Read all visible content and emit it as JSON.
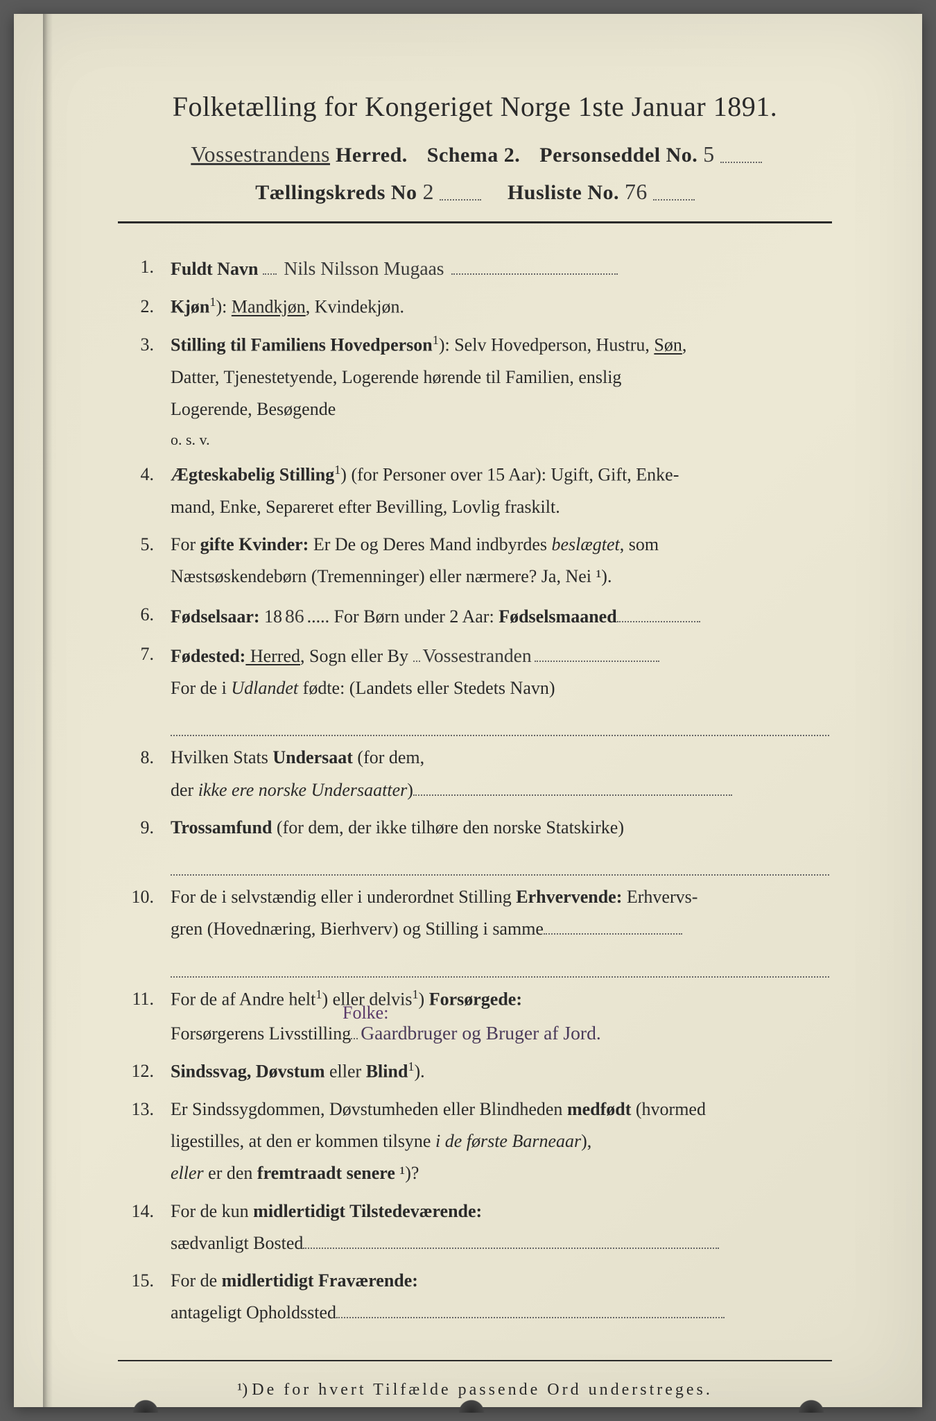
{
  "header": {
    "main_title": "Folketælling for Kongeriget Norge 1ste Januar 1891.",
    "herred_handwritten": "Vossestrandens",
    "herred_label": "Herred.",
    "schema_label": "Schema 2.",
    "person_label": "Personseddel No.",
    "person_no": "5",
    "kreds_label": "Tællingskreds No",
    "kreds_no": "2",
    "husliste_label": "Husliste No.",
    "husliste_no": "76"
  },
  "items": [
    {
      "num": "1.",
      "label_bold": "Fuldt Navn",
      "handwritten": "Nils Nilsson Mugaas"
    },
    {
      "num": "2.",
      "label_bold": "Kjøn",
      "sup": "1",
      "text_after": "): ",
      "options_underlined": "Mandkjøn",
      "options_rest": ", Kvindekjøn."
    },
    {
      "num": "3.",
      "label_bold": "Stilling til Familiens Hovedperson",
      "sup": "1",
      "text_after": "): Selv Hovedperson, Hustru, ",
      "underlined_opt": "Søn",
      "text_tail": ",",
      "continuations": [
        "Datter, Tjenestetyende, Logerende hørende til Familien, enslig",
        "Logerende, Besøgende",
        "o. s. v."
      ]
    },
    {
      "num": "4.",
      "label_bold": "Ægteskabelig Stilling",
      "sup": "1",
      "text_after": ") (for Personer over 15 Aar): Ugift, Gift, Enke-",
      "continuations": [
        "mand, Enke, Separeret efter Bevilling, Lovlig fraskilt."
      ]
    },
    {
      "num": "5.",
      "pre_text": "For ",
      "label_bold": "gifte Kvinder:",
      "text_after": " Er De og Deres Mand indbyrdes ",
      "ital": "beslægtet",
      "text_tail": ", som",
      "continuations": [
        "Næstsøskendebørn (Tremenninger) eller nærmere?  Ja, Nei ¹)."
      ]
    },
    {
      "num": "6.",
      "label_bold": "Fødselsaar:",
      "year_prefix": " 18",
      "year_hw": "86",
      "text_after": ".....   For Børn under 2 Aar: ",
      "label_bold2": "Fødselsmaaned",
      "trail_dots": true
    },
    {
      "num": "7.",
      "label_bold": "Fødested:",
      "underlined_opt": " Herred",
      "text_after": ", Sogn eller By ",
      "handwritten": "Vossestranden",
      "continuations": [
        "For de i <i>Udlandet</i> fødte: (Landets eller Stedets Navn)"
      ],
      "dotted_line_after": true
    },
    {
      "num": "8.",
      "pre_text": "Hvilken Stats ",
      "label_bold": "Undersaat",
      "text_after": " (for dem,",
      "continuations": [
        "der <i>ikke ere norske Undersaatter</i>)"
      ],
      "cont_trail_dots": true
    },
    {
      "num": "9.",
      "label_bold": "Trossamfund",
      "text_after": "  (for  dem,  der  ikke  tilhøre  den  norske  Statskirke)",
      "dotted_line_after": true
    },
    {
      "num": "10.",
      "pre_text": "For de i selvstændig eller i underordnet Stilling ",
      "label_bold": "Erhvervende:",
      "text_after": " Erhvervs-",
      "continuations": [
        "gren (Hovednæring, Bierhverv) og Stilling i samme"
      ],
      "cont_trail_dots": true,
      "dotted_line_after": true
    },
    {
      "num": "11.",
      "pre_text": "For de af Andre helt",
      "sup": "1",
      "mid_text": ") eller delvis",
      "sup2": "1",
      "text_after": ") ",
      "label_bold": "Forsørgede:",
      "stamp_text": "Folke:",
      "continuations_label": "Forsørgerens Livsstilling",
      "cont_handwritten": "Gaardbruger og Bruger af Jord."
    },
    {
      "num": "12.",
      "label_bold": "Sindssvag, Døvstum",
      "text_after": " eller ",
      "label_bold2": "Blind",
      "sup": "1",
      "text_tail": ")."
    },
    {
      "num": "13.",
      "pre_text": "Er Sindssygdommen, Døvstumheden eller Blindheden ",
      "label_bold": "medfødt",
      "text_after": " (hvormed",
      "continuations": [
        "ligestilles, at den er kommen tilsyne <i>i de første Barneaar</i>),",
        "<i>eller</i> er den <b>fremtraadt senere</b> ¹)?"
      ]
    },
    {
      "num": "14.",
      "pre_text": "For de kun ",
      "label_bold": "midlertidigt Tilstedeværende:",
      "continuations_plain": "sædvanligt Bosted",
      "cont_trail_dots": true
    },
    {
      "num": "15.",
      "pre_text": "For de ",
      "label_bold": "midlertidigt Fraværende:",
      "continuations_plain": "antageligt Opholdssted",
      "cont_trail_dots": true
    }
  ],
  "footnote": {
    "marker": "¹)",
    "text": "De for hvert Tilfælde passende Ord understreges."
  }
}
